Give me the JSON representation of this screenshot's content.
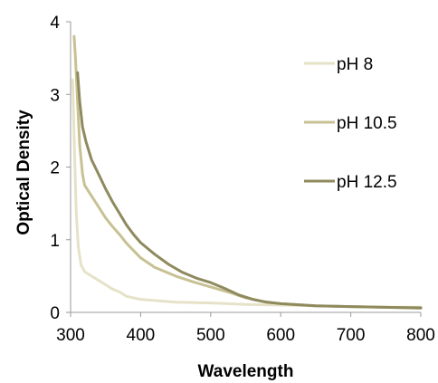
{
  "chart_data": {
    "type": "line",
    "title": "",
    "xlabel": "Wavelength",
    "ylabel": "Optical Density",
    "xlim": [
      300,
      800
    ],
    "ylim": [
      0,
      4
    ],
    "xticks": [
      300,
      400,
      500,
      600,
      700,
      800
    ],
    "yticks": [
      0,
      1,
      2,
      3,
      4
    ],
    "grid": false,
    "legend_position": "right",
    "series": [
      {
        "name": "pH 8",
        "color": "#e6e2c8",
        "points": [
          [
            303,
            3.2
          ],
          [
            305,
            2.4
          ],
          [
            308,
            1.4
          ],
          [
            311,
            0.9
          ],
          [
            315,
            0.65
          ],
          [
            320,
            0.56
          ],
          [
            330,
            0.5
          ],
          [
            340,
            0.44
          ],
          [
            350,
            0.38
          ],
          [
            360,
            0.32
          ],
          [
            370,
            0.28
          ],
          [
            380,
            0.22
          ],
          [
            400,
            0.18
          ],
          [
            450,
            0.14
          ],
          [
            500,
            0.13
          ],
          [
            550,
            0.11
          ],
          [
            600,
            0.1
          ],
          [
            650,
            0.09
          ],
          [
            700,
            0.08
          ],
          [
            750,
            0.07
          ],
          [
            800,
            0.06
          ]
        ]
      },
      {
        "name": "pH 10.5",
        "color": "#c8c194",
        "points": [
          [
            305,
            3.8
          ],
          [
            307,
            3.5
          ],
          [
            310,
            2.9
          ],
          [
            313,
            2.3
          ],
          [
            317,
            1.9
          ],
          [
            320,
            1.75
          ],
          [
            330,
            1.6
          ],
          [
            340,
            1.45
          ],
          [
            350,
            1.3
          ],
          [
            360,
            1.18
          ],
          [
            370,
            1.07
          ],
          [
            380,
            0.95
          ],
          [
            400,
            0.75
          ],
          [
            420,
            0.62
          ],
          [
            450,
            0.5
          ],
          [
            475,
            0.42
          ],
          [
            500,
            0.35
          ],
          [
            525,
            0.28
          ],
          [
            550,
            0.2
          ],
          [
            575,
            0.15
          ],
          [
            600,
            0.12
          ],
          [
            650,
            0.09
          ],
          [
            700,
            0.08
          ],
          [
            750,
            0.07
          ],
          [
            800,
            0.07
          ]
        ]
      },
      {
        "name": "pH 12.5",
        "color": "#8f8a5e",
        "points": [
          [
            310,
            3.3
          ],
          [
            313,
            2.9
          ],
          [
            317,
            2.55
          ],
          [
            322,
            2.35
          ],
          [
            330,
            2.1
          ],
          [
            340,
            1.9
          ],
          [
            350,
            1.7
          ],
          [
            360,
            1.52
          ],
          [
            370,
            1.36
          ],
          [
            380,
            1.2
          ],
          [
            390,
            1.07
          ],
          [
            400,
            0.96
          ],
          [
            420,
            0.8
          ],
          [
            440,
            0.66
          ],
          [
            460,
            0.55
          ],
          [
            480,
            0.47
          ],
          [
            500,
            0.41
          ],
          [
            520,
            0.33
          ],
          [
            540,
            0.24
          ],
          [
            560,
            0.18
          ],
          [
            580,
            0.14
          ],
          [
            600,
            0.12
          ],
          [
            650,
            0.09
          ],
          [
            700,
            0.08
          ],
          [
            750,
            0.07
          ],
          [
            800,
            0.06
          ]
        ]
      }
    ]
  }
}
